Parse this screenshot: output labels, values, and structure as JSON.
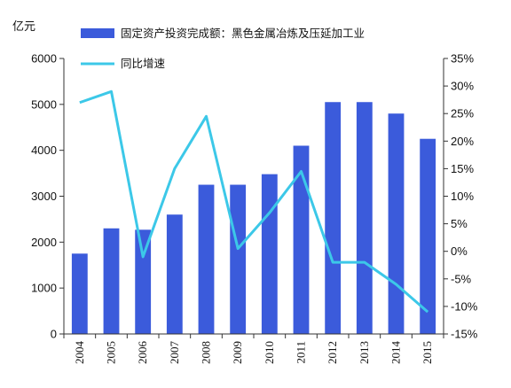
{
  "chart_data": {
    "type": "bar",
    "unit_left": "亿元",
    "categories": [
      "2004",
      "2005",
      "2006",
      "2007",
      "2008",
      "2009",
      "2010",
      "2011",
      "2012",
      "2013",
      "2014",
      "2015"
    ],
    "series": [
      {
        "name": "固定资产投资完成额：黑色金属冶炼及压延加工业",
        "type": "bar",
        "axis": "left",
        "color": "#3B5BDB",
        "values": [
          1750,
          2300,
          2270,
          2600,
          3250,
          3250,
          3480,
          4100,
          5050,
          5050,
          4800,
          4250
        ]
      },
      {
        "name": "同比增速",
        "type": "line",
        "axis": "right",
        "color": "#3CC8E8",
        "values": [
          27,
          29,
          -1,
          15,
          24.5,
          0.5,
          7,
          14.5,
          -2,
          -2,
          -6,
          -11
        ]
      }
    ],
    "left_axis": {
      "min": 0,
      "max": 6000,
      "ticks": [
        "0",
        "1000",
        "2000",
        "3000",
        "4000",
        "5000",
        "6000"
      ]
    },
    "right_axis": {
      "min": -15,
      "max": 35,
      "ticks": [
        "-15%",
        "-10%",
        "-5%",
        "0%",
        "5%",
        "10%",
        "15%",
        "20%",
        "25%",
        "30%",
        "35%"
      ]
    },
    "grid": false,
    "legend_position": "top"
  }
}
